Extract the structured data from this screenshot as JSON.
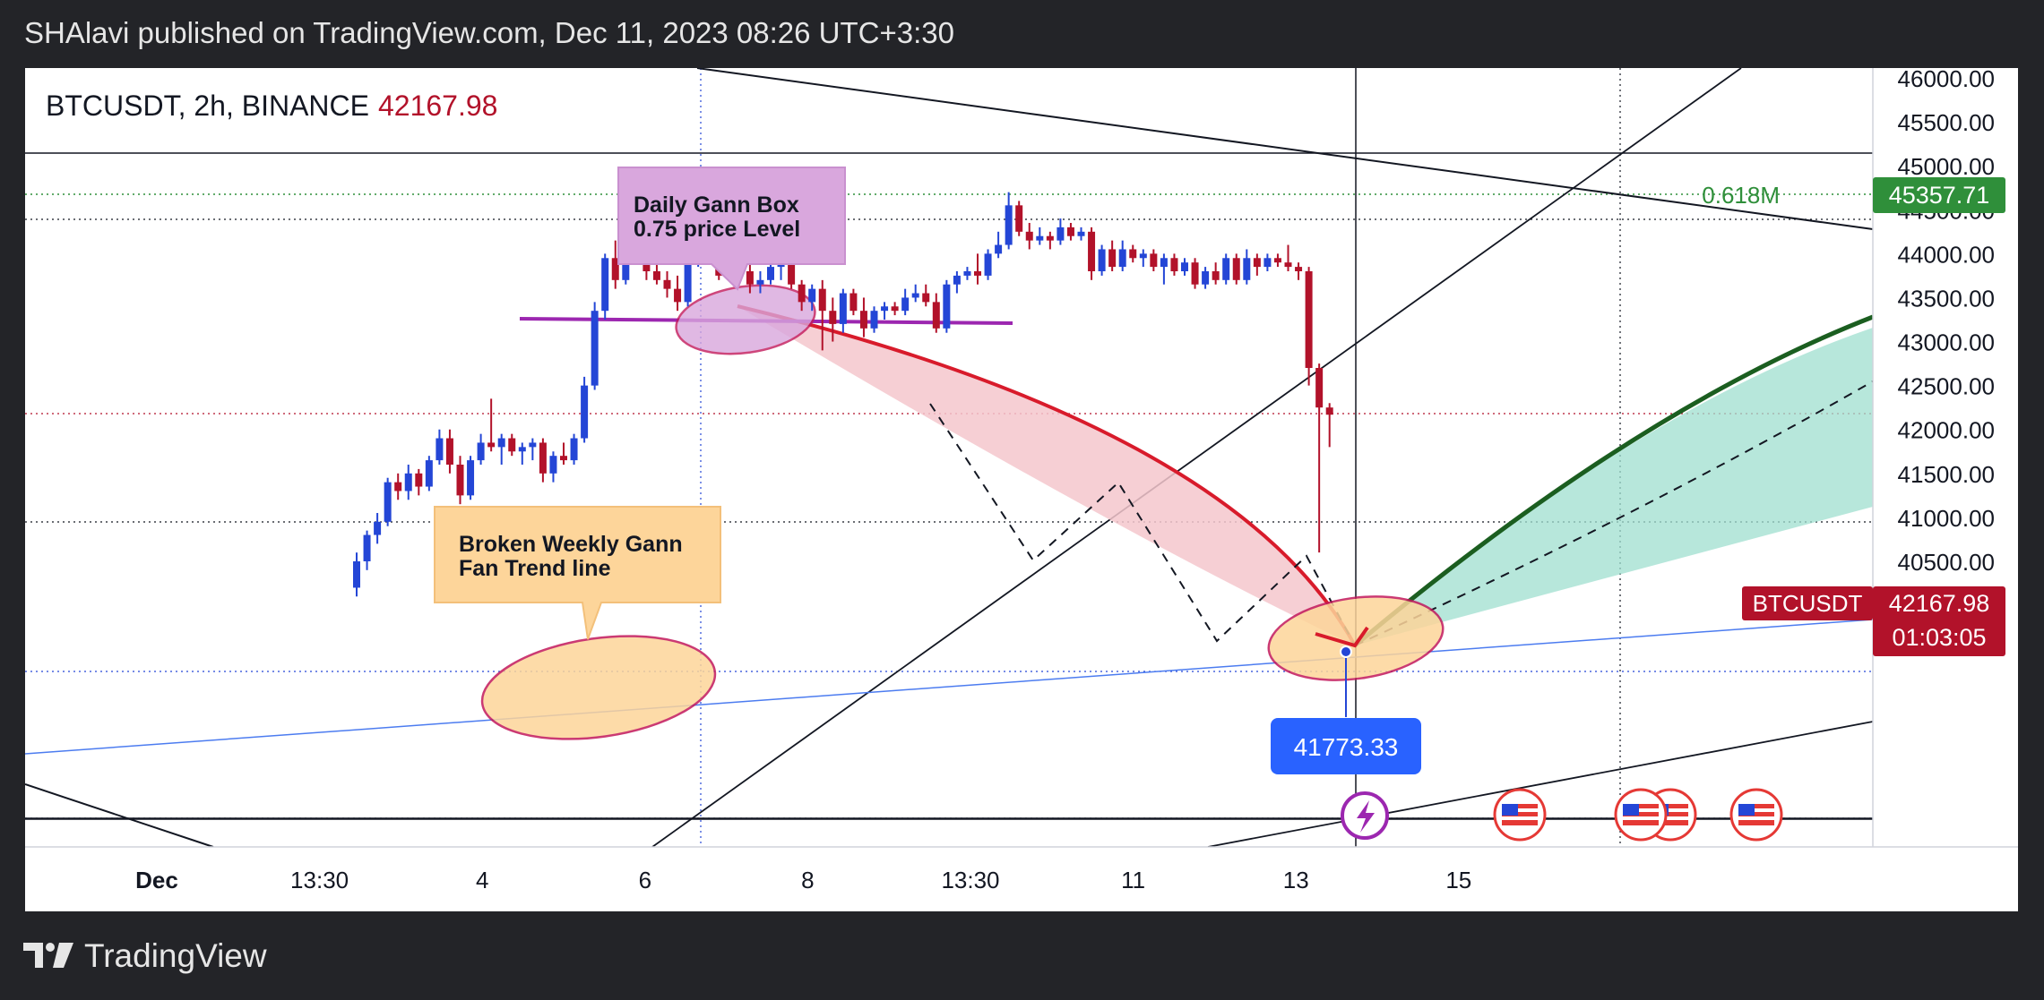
{
  "publisher_line": "SHAlavi published on TradingView.com, Dec 11, 2023 08:26 UTC+3:30",
  "legend": {
    "symbol": "BTCUSDT, 2h, BINANCE",
    "price": "42167.98"
  },
  "footer": {
    "brand": "TradingView",
    "logo_icon": "tradingview-logo-icon"
  },
  "colors": {
    "up": "#2446d6",
    "down": "#b2122a",
    "gann_fill": "#f4c7cc",
    "fan_fill": "#9fdfcf",
    "arc": "#d81b2b",
    "green_curve": "#1b5e20",
    "orange_fill": "#fdd59a",
    "purple_fill": "#d9a7dd"
  },
  "annotations": {
    "daily_gann": [
      "Daily Gann Box",
      "0.75 price Level"
    ],
    "weekly_fan": [
      "Broken Weekly Gann",
      "Fan Trend line"
    ],
    "fib_label": "0.618M",
    "low_label": "41773.33"
  },
  "chart_data": {
    "type": "candlestick",
    "title": "BTCUSDT, 2h, BINANCE",
    "last_price": 42167.98,
    "symbol_tag": "BTCUSDT",
    "countdown": "01:03:05",
    "fib_level": {
      "label": "0.618M",
      "value": 45357.71,
      "value_label": "45357.71"
    },
    "low_marker": {
      "label": "41773.33",
      "value": 41773.33
    },
    "ylim": [
      40300,
      46400
    ],
    "y_ticks": [
      "46000.00",
      "45500.00",
      "45000.00",
      "44500.00",
      "44000.00",
      "43500.00",
      "43000.00",
      "42500.00",
      "42000.00",
      "41500.00",
      "41000.00",
      "40500.00"
    ],
    "x_ticks": [
      "Dec",
      "13:30",
      "4",
      "6",
      "8",
      "13:30",
      "11",
      "13",
      "15"
    ],
    "grid": false,
    "candles": [
      [
        40200,
        40600,
        40100,
        40500
      ],
      [
        40500,
        40850,
        40400,
        40800
      ],
      [
        40800,
        41050,
        40700,
        40950
      ],
      [
        40950,
        41450,
        40900,
        41400
      ],
      [
        41400,
        41500,
        41200,
        41300
      ],
      [
        41300,
        41600,
        41200,
        41500
      ],
      [
        41500,
        41550,
        41250,
        41350
      ],
      [
        41350,
        41700,
        41300,
        41650
      ],
      [
        41650,
        42000,
        41600,
        41900
      ],
      [
        41900,
        42000,
        41500,
        41600
      ],
      [
        41600,
        41700,
        41150,
        41250
      ],
      [
        41250,
        41700,
        41200,
        41650
      ],
      [
        41650,
        41950,
        41600,
        41850
      ],
      [
        41850,
        42350,
        41750,
        41800
      ],
      [
        41800,
        41950,
        41600,
        41900
      ],
      [
        41900,
        41950,
        41700,
        41750
      ],
      [
        41750,
        41850,
        41600,
        41800
      ],
      [
        41800,
        41900,
        41650,
        41850
      ],
      [
        41850,
        41900,
        41400,
        41500
      ],
      [
        41500,
        41750,
        41400,
        41700
      ],
      [
        41700,
        41850,
        41600,
        41650
      ],
      [
        41650,
        41950,
        41600,
        41900
      ],
      [
        41900,
        42600,
        41850,
        42500
      ],
      [
        42500,
        43450,
        42450,
        43350
      ],
      [
        43350,
        44000,
        43250,
        43950
      ],
      [
        43950,
        44150,
        43600,
        43700
      ],
      [
        43700,
        44200,
        43650,
        44100
      ],
      [
        44100,
        44250,
        43900,
        44000
      ],
      [
        44000,
        44050,
        43700,
        43800
      ],
      [
        43800,
        43950,
        43650,
        43700
      ],
      [
        43700,
        43800,
        43500,
        43600
      ],
      [
        43600,
        43750,
        43350,
        43450
      ],
      [
        43450,
        43950,
        43400,
        43900
      ],
      [
        43900,
        44300,
        43850,
        44200
      ],
      [
        44200,
        44350,
        43900,
        43950
      ],
      [
        43950,
        44100,
        43700,
        43750
      ],
      [
        43750,
        44150,
        43700,
        44050
      ],
      [
        44050,
        44100,
        43750,
        43800
      ],
      [
        43800,
        43900,
        43550,
        43650
      ],
      [
        43650,
        43800,
        43550,
        43700
      ],
      [
        43700,
        43900,
        43650,
        43850
      ],
      [
        43850,
        43950,
        43700,
        43900
      ],
      [
        43900,
        43950,
        43600,
        43650
      ],
      [
        43650,
        43700,
        43350,
        43450
      ],
      [
        43450,
        43650,
        43350,
        43600
      ],
      [
        43600,
        43700,
        42900,
        43350
      ],
      [
        43350,
        43500,
        43000,
        43200
      ],
      [
        43200,
        43600,
        43100,
        43550
      ],
      [
        43550,
        43600,
        43300,
        43350
      ],
      [
        43350,
        43500,
        43050,
        43150
      ],
      [
        43150,
        43400,
        43100,
        43350
      ],
      [
        43350,
        43450,
        43250,
        43400
      ],
      [
        43400,
        43450,
        43300,
        43350
      ],
      [
        43350,
        43600,
        43300,
        43500
      ],
      [
        43500,
        43650,
        43450,
        43550
      ],
      [
        43550,
        43650,
        43400,
        43450
      ],
      [
        43450,
        43550,
        43100,
        43150
      ],
      [
        43150,
        43700,
        43100,
        43650
      ],
      [
        43650,
        43800,
        43550,
        43750
      ],
      [
        43750,
        43850,
        43700,
        43800
      ],
      [
        43800,
        44000,
        43650,
        43750
      ],
      [
        43750,
        44050,
        43700,
        44000
      ],
      [
        44000,
        44250,
        43950,
        44100
      ],
      [
        44100,
        44700,
        44050,
        44550
      ],
      [
        44550,
        44600,
        44200,
        44250
      ],
      [
        44250,
        44350,
        44050,
        44150
      ],
      [
        44150,
        44300,
        44100,
        44200
      ],
      [
        44200,
        44250,
        44050,
        44150
      ],
      [
        44150,
        44400,
        44100,
        44300
      ],
      [
        44300,
        44350,
        44150,
        44200
      ],
      [
        44200,
        44300,
        44150,
        44250
      ],
      [
        44250,
        44300,
        43700,
        43800
      ],
      [
        43800,
        44100,
        43750,
        44050
      ],
      [
        44050,
        44150,
        43800,
        43850
      ],
      [
        43850,
        44150,
        43800,
        44050
      ],
      [
        44050,
        44100,
        43900,
        43950
      ],
      [
        43950,
        44050,
        43850,
        44000
      ],
      [
        44000,
        44050,
        43800,
        43850
      ],
      [
        43850,
        44000,
        43650,
        43950
      ],
      [
        43950,
        44000,
        43750,
        43800
      ],
      [
        43800,
        43950,
        43750,
        43900
      ],
      [
        43900,
        43950,
        43600,
        43650
      ],
      [
        43650,
        43850,
        43600,
        43800
      ],
      [
        43800,
        43900,
        43650,
        43700
      ],
      [
        43700,
        44000,
        43650,
        43950
      ],
      [
        43950,
        44000,
        43650,
        43700
      ],
      [
        43700,
        44050,
        43650,
        43950
      ],
      [
        43950,
        44000,
        43750,
        43850
      ],
      [
        43850,
        44000,
        43800,
        43950
      ],
      [
        43950,
        44000,
        43850,
        43900
      ],
      [
        43900,
        44100,
        43800,
        43850
      ],
      [
        43850,
        43900,
        43700,
        43800
      ],
      [
        43800,
        43850,
        42500,
        42700
      ],
      [
        42700,
        42750,
        40600,
        42250
      ],
      [
        42250,
        42300,
        41800,
        42168
      ]
    ]
  }
}
